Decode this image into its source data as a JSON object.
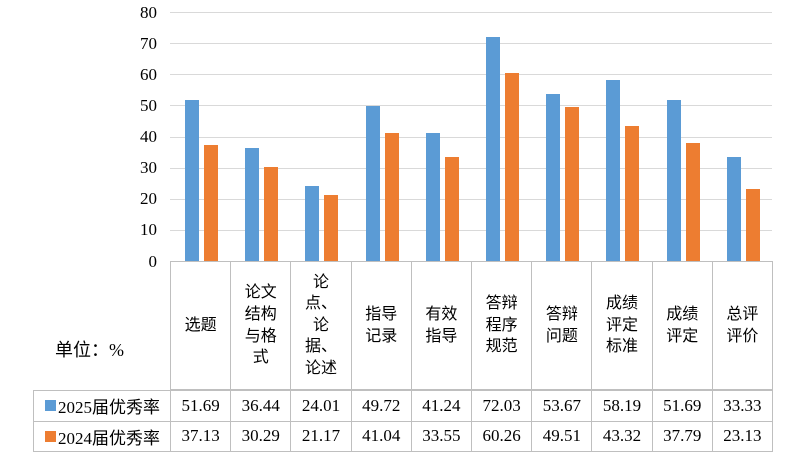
{
  "unit_label": "单位：%",
  "colors": {
    "series_2025": "#5B9BD5",
    "series_2024": "#ED7D31",
    "gridline": "#D9D9D9",
    "table_border": "#BFBFBF",
    "text": "#000000",
    "background": "#FFFFFF"
  },
  "chart_data": {
    "type": "bar",
    "title": "",
    "unit": "%",
    "categories": [
      "选题",
      "论文结构与格式",
      "论点、论据、论述",
      "指导记录",
      "有效指导",
      "答辩程序规范",
      "答辩问题",
      "成绩评定标准",
      "成绩评定",
      "总评评价"
    ],
    "category_display": [
      "选题",
      "论文\n结构\n与格\n式",
      "论\n点、\n论\n据、\n论述",
      "指导\n记录",
      "有效\n指导",
      "答辩\n程序\n规范",
      "答辩\n问题",
      "成绩\n评定\n标准",
      "成绩\n评定",
      "总评\n评价"
    ],
    "series": [
      {
        "name": "2025届优秀率",
        "color": "#5B9BD5",
        "values": [
          51.69,
          36.44,
          24.01,
          49.72,
          41.24,
          72.03,
          53.67,
          58.19,
          51.69,
          33.33
        ]
      },
      {
        "name": "2024届优秀率",
        "color": "#ED7D31",
        "values": [
          37.13,
          30.29,
          21.17,
          41.04,
          33.55,
          60.26,
          49.51,
          43.32,
          37.79,
          23.13
        ]
      }
    ],
    "y_axis": {
      "min": 0,
      "max": 80,
      "step": 10,
      "ticks": [
        80,
        70,
        60,
        50,
        40,
        30,
        20,
        10,
        0
      ]
    },
    "grid": true,
    "legend_position": "table-rows-left",
    "value_format": "0.00"
  }
}
